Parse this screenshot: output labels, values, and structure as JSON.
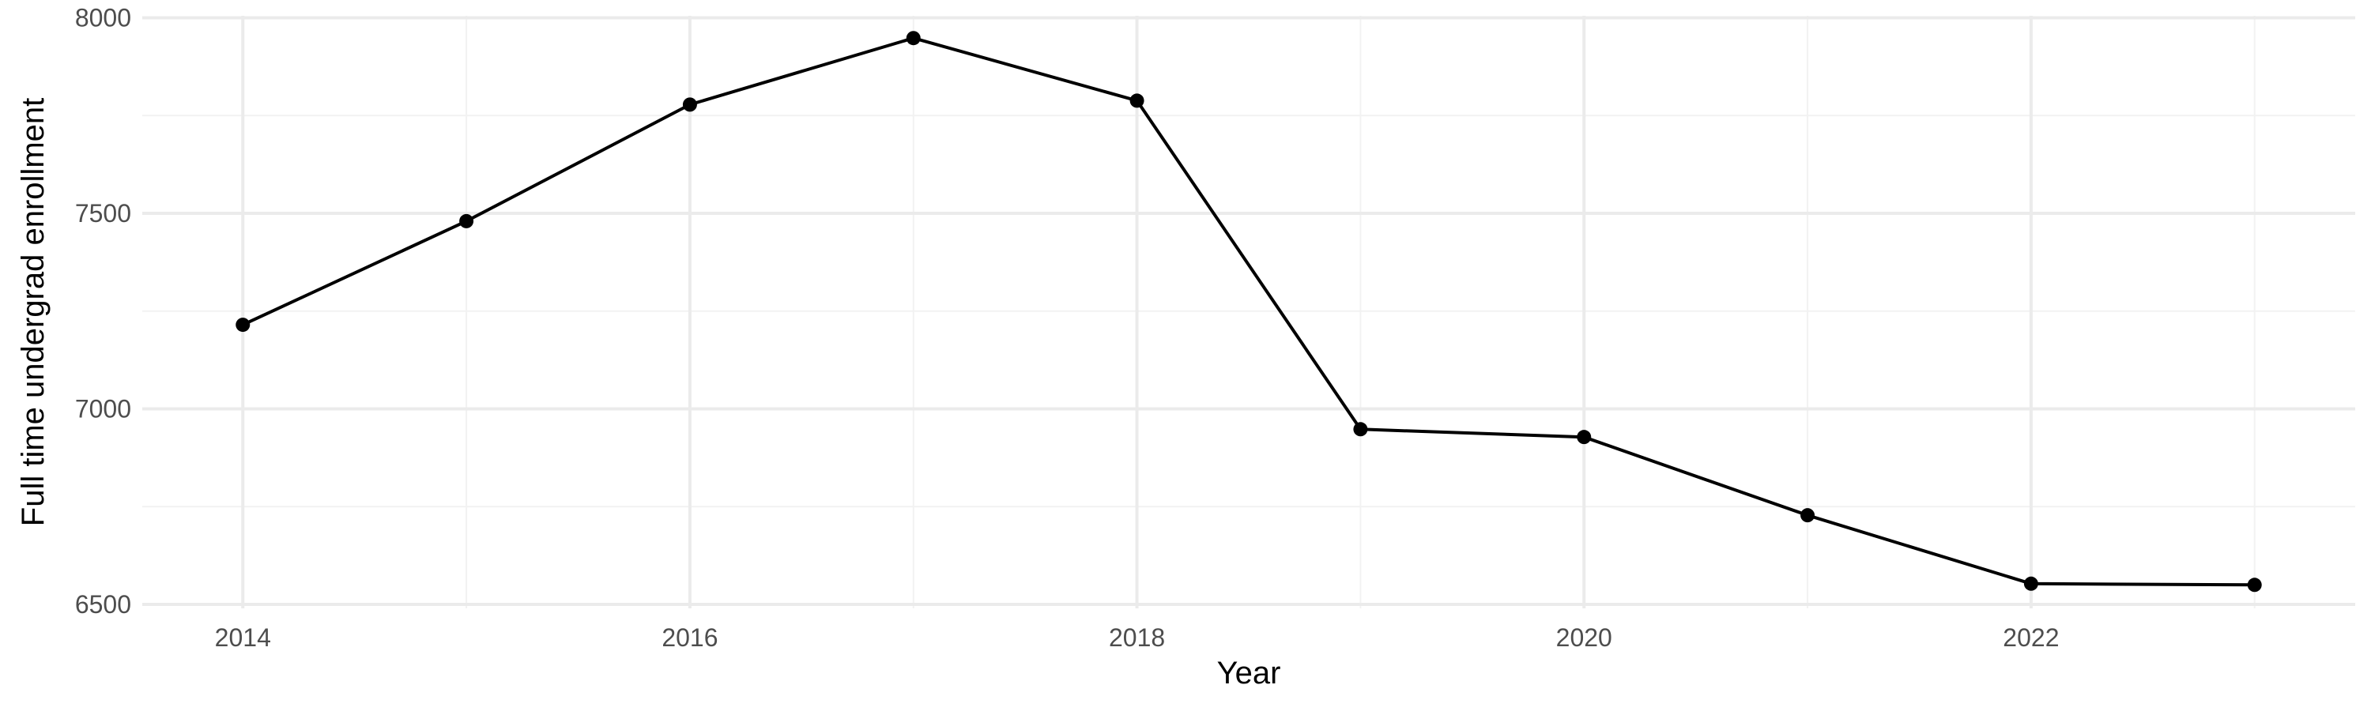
{
  "chart_data": {
    "type": "line",
    "title": "",
    "xlabel": "Year",
    "ylabel": "Full time undergrad enrollment",
    "x": [
      2014,
      2015,
      2016,
      2017,
      2018,
      2019,
      2020,
      2021,
      2022,
      2023
    ],
    "series": [
      {
        "values": [
          7215,
          7480,
          7778,
          7948,
          7788,
          6948,
          6928,
          6728,
          6553,
          6550
        ]
      }
    ],
    "xlim": [
      2013.55,
      2023.45
    ],
    "ylim": [
      6490,
      8005
    ],
    "x_ticks": [
      2014,
      2016,
      2018,
      2020,
      2022
    ],
    "x_tick_labels": [
      "2014",
      "2016",
      "2018",
      "2020",
      "2022"
    ],
    "y_ticks": [
      6500,
      7000,
      7500,
      8000
    ],
    "y_tick_labels": [
      "6500",
      "7000",
      "7500",
      "8000"
    ],
    "grid": true,
    "legend": "none",
    "colors": {
      "line": "#000000",
      "points": "#000000",
      "major_grid": "#ebebeb",
      "minor_grid": "#f2f2f2",
      "text": "#4d4d4d"
    }
  }
}
